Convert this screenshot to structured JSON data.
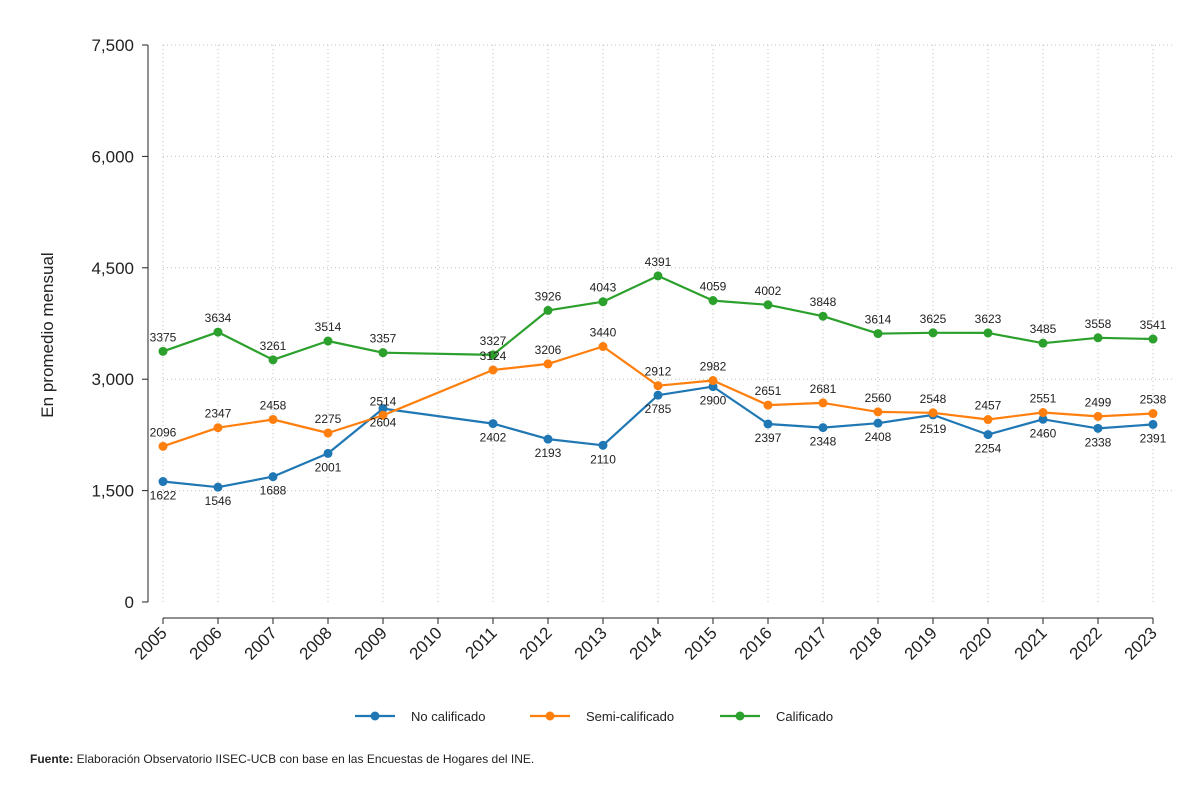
{
  "chart_data": {
    "type": "line",
    "title": "",
    "xlabel": "",
    "ylabel": "En promedio mensual",
    "ylim": [
      0,
      7500
    ],
    "yticks": [
      0,
      1500,
      3000,
      4500,
      6000,
      7500
    ],
    "ytick_labels": [
      "0",
      "1,500",
      "3,000",
      "4,500",
      "6,000",
      "7,500"
    ],
    "grid": true,
    "legend_position": "bottom-center",
    "categories": [
      "2005",
      "2006",
      "2007",
      "2008",
      "2009",
      "2010",
      "2011",
      "2012",
      "2013",
      "2014",
      "2015",
      "2016",
      "2017",
      "2018",
      "2019",
      "2020",
      "2021",
      "2022",
      "2023"
    ],
    "series": [
      {
        "name": "No calificado",
        "color": "#1f77b4",
        "label_position": "below",
        "values": [
          1622,
          1546,
          1688,
          2001,
          2604,
          null,
          2402,
          2193,
          2110,
          2785,
          2900,
          2397,
          2348,
          2408,
          2519,
          2254,
          2460,
          2338,
          2391
        ]
      },
      {
        "name": "Semi-calificado",
        "color": "#ff7f0e",
        "label_position": "above",
        "values": [
          2096,
          2347,
          2458,
          2275,
          2514,
          null,
          3124,
          3206,
          3440,
          2912,
          2982,
          2651,
          2681,
          2560,
          2548,
          2457,
          2551,
          2499,
          2538
        ]
      },
      {
        "name": "Calificado",
        "color": "#2ca02c",
        "label_position": "above",
        "values": [
          3375,
          3634,
          3261,
          3514,
          3357,
          null,
          3327,
          3926,
          4043,
          4391,
          4059,
          4002,
          3848,
          3614,
          3625,
          3623,
          3485,
          3558,
          3541
        ]
      }
    ]
  },
  "source": {
    "label": "Fuente:",
    "text": " Elaboración Observatorio IISEC-UCB con base en las Encuestas de Hogares del INE."
  }
}
